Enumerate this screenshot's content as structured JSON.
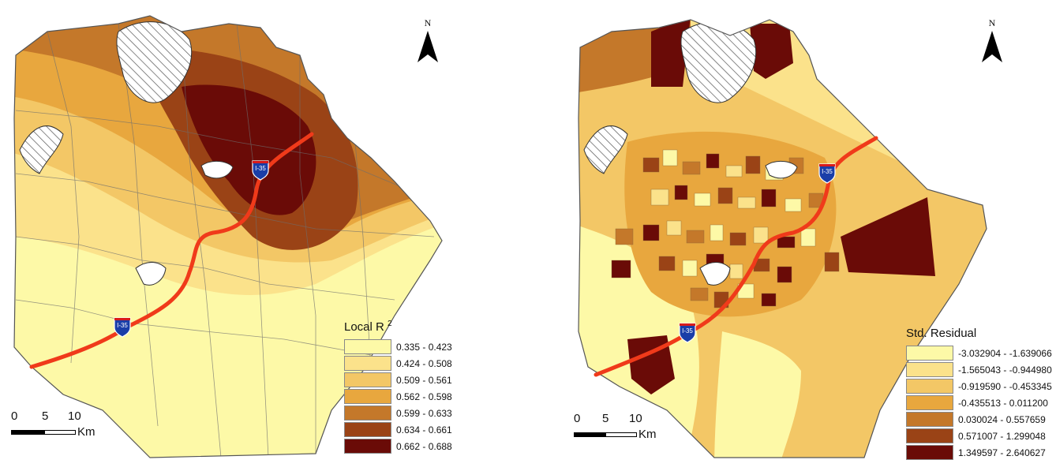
{
  "maps": [
    {
      "id": "local-r2",
      "north_label": "N",
      "highway_label": "I-35",
      "legend": {
        "title": "Local R",
        "title_sup": "2",
        "classes": [
          {
            "label": "0.335 - 0.423",
            "color": "#fdf9a7"
          },
          {
            "label": "0.424 - 0.508",
            "color": "#fbe28b"
          },
          {
            "label": "0.509 - 0.561",
            "color": "#f3c766"
          },
          {
            "label": "0.562 - 0.598",
            "color": "#e8a73e"
          },
          {
            "label": "0.599 - 0.633",
            "color": "#c4782a"
          },
          {
            "label": "0.634 - 0.661",
            "color": "#9a4316"
          },
          {
            "label": "0.662 - 0.688",
            "color": "#6a0b07"
          }
        ]
      },
      "scale": {
        "ticks": [
          "0",
          "5",
          "10"
        ],
        "unit": "Km"
      }
    },
    {
      "id": "std-residual",
      "north_label": "N",
      "highway_label": "I-35",
      "legend": {
        "title": "Std. Residual",
        "title_sup": "",
        "classes": [
          {
            "label": "-3.032904 - -1.639066",
            "color": "#fdf9a7"
          },
          {
            "label": "-1.565043 - -0.944980",
            "color": "#fbe28b"
          },
          {
            "label": "-0.919590 - -0.453345",
            "color": "#f3c766"
          },
          {
            "label": "-0.435513 - 0.011200",
            "color": "#e8a73e"
          },
          {
            "label": "0.030024 - 0.557659",
            "color": "#c4782a"
          },
          {
            "label": "0.571007 - 1.299048",
            "color": "#9a4316"
          },
          {
            "label": "1.349597 - 2.640627",
            "color": "#6a0b07"
          }
        ]
      },
      "scale": {
        "ticks": [
          "0",
          "5",
          "10"
        ],
        "unit": "Km"
      }
    }
  ]
}
